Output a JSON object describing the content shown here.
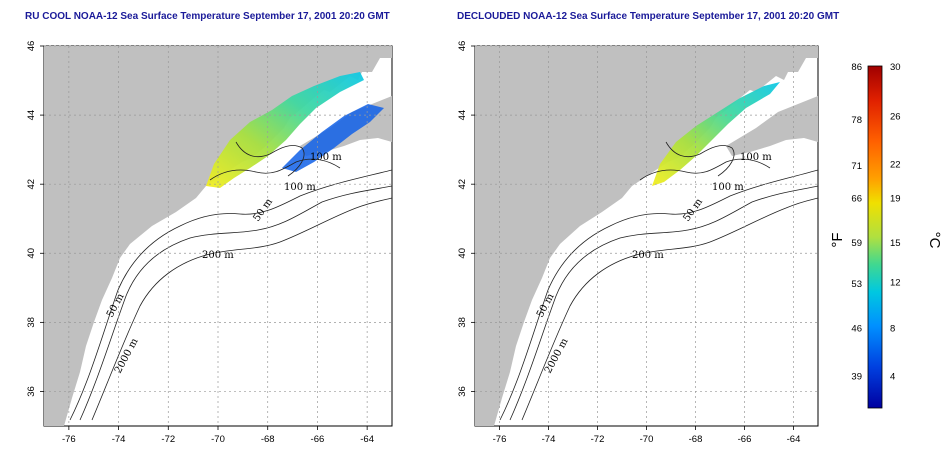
{
  "maps": [
    {
      "title": "RU COOL NOAA-12 Sea Surface Temperature September 17, 2001 20:20 GMT",
      "contour_labels": [
        "100 m",
        "100 m",
        "50 m",
        "200 m",
        "50 m",
        "2000 m"
      ]
    },
    {
      "title": "DECLOUDED NOAA-12 Sea Surface Temperature September 17, 2001 20:20 GMT",
      "contour_labels": [
        "100 m",
        "100 m",
        "50 m",
        "200 m",
        "50 m",
        "2000 m"
      ]
    }
  ],
  "axes": {
    "x_ticks": [
      "-76",
      "-74",
      "-72",
      "-70",
      "-68",
      "-66",
      "-64"
    ],
    "y_ticks": [
      "46",
      "44",
      "42",
      "40",
      "38",
      "36"
    ],
    "x_range": [
      -77,
      -63
    ],
    "y_range": [
      35,
      46
    ],
    "grid": true
  },
  "colorbar": {
    "fahrenheit_ticks": [
      "86",
      "78",
      "71",
      "66",
      "59",
      "53",
      "46",
      "39"
    ],
    "celsius_ticks": [
      "30",
      "26",
      "22",
      "19",
      "15",
      "12",
      "8",
      "4"
    ],
    "fahrenheit_label": "°F",
    "celsius_label": "°C",
    "colors": [
      "#a00000",
      "#e02000",
      "#ff6000",
      "#ffa000",
      "#f0e000",
      "#b0e040",
      "#40d890",
      "#00c8e0",
      "#0090ff",
      "#0040e0",
      "#0000a0"
    ]
  }
}
